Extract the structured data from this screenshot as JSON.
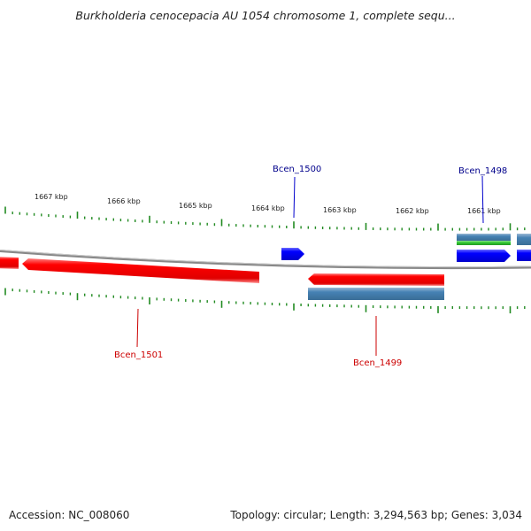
{
  "title": "Burkholderia cenocepacia AU 1054 chromosome 1, complete sequ...",
  "footer": {
    "accession": "Accession: NC_008060",
    "summary": "Topology: circular; Length: 3,294,563 bp; Genes: 3,034"
  },
  "kbp_labels": [
    "1667 kbp",
    "1666 kbp",
    "1665 kbp",
    "1664 kbp",
    "1663 kbp",
    "1662 kbp",
    "1661 kbp"
  ],
  "genes": [
    {
      "name": "Bcen_1500",
      "color": "#00008b"
    },
    {
      "name": "Bcen_1498",
      "color": "#00008b"
    },
    {
      "name": "Bcen_1501",
      "color": "#cc0000"
    },
    {
      "name": "Bcen_1499",
      "color": "#cc0000"
    }
  ],
  "colors": {
    "forward_feature": "#0000ff",
    "reverse_feature": "#ff0000",
    "secondary_feature": "#4682b4",
    "rna_feature": "#33cc33",
    "tick": "#228b22",
    "backbone": "#888888"
  }
}
